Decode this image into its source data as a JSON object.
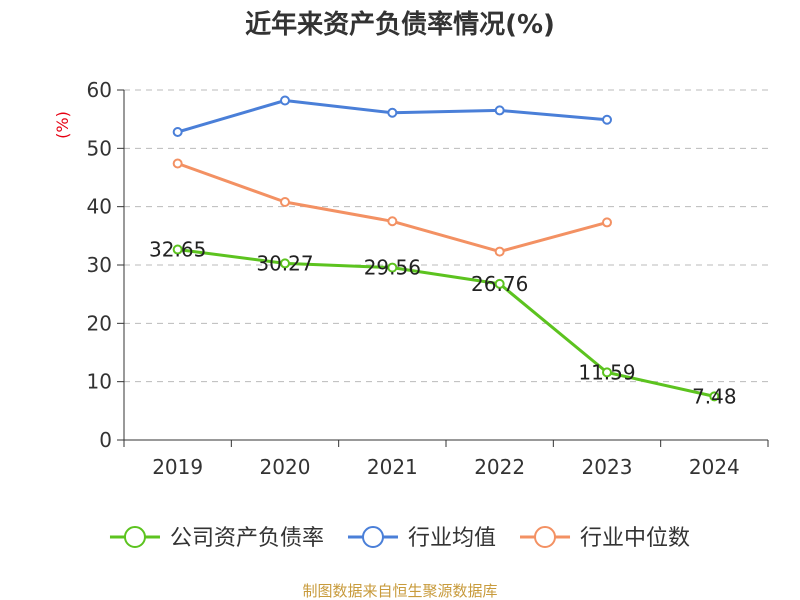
{
  "chart_data": {
    "type": "line",
    "title": "近年来资产负债率情况(%)",
    "ylabel": "(%)",
    "categories": [
      "2019",
      "2020",
      "2021",
      "2022",
      "2023",
      "2024"
    ],
    "ylim": [
      0,
      60
    ],
    "yticks": [
      0,
      10,
      20,
      30,
      40,
      50,
      60
    ],
    "grid": true,
    "legend_position": "bottom",
    "series": [
      {
        "name": "公司资产负债率",
        "color": "#5cc31f",
        "values": [
          32.65,
          30.27,
          29.56,
          26.76,
          11.59,
          7.48
        ],
        "labels": [
          "32.65",
          "30.27",
          "29.56",
          "26.76",
          "11.59",
          "7.48"
        ]
      },
      {
        "name": "行业均值",
        "color": "#4a7fd8",
        "values": [
          52.8,
          58.2,
          56.1,
          56.5,
          54.9,
          null
        ]
      },
      {
        "name": "行业中位数",
        "color": "#f39163",
        "values": [
          47.4,
          40.8,
          37.5,
          32.3,
          37.3,
          null
        ]
      }
    ]
  },
  "source": "制图数据来自恒生聚源数据库"
}
